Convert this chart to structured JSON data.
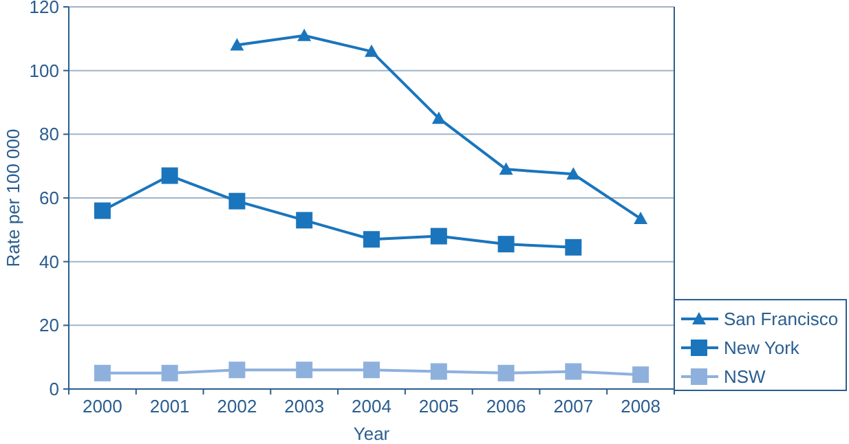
{
  "chart_data": {
    "type": "line",
    "xlabel": "Year",
    "ylabel": "Rate per 100 000",
    "categories": [
      "2000",
      "2001",
      "2002",
      "2003",
      "2004",
      "2005",
      "2006",
      "2007",
      "2008"
    ],
    "series": [
      {
        "name": "San Francisco",
        "color": "#1a75bc",
        "marker": "triangle",
        "values": [
          null,
          null,
          108,
          111,
          106,
          85,
          69,
          67.5,
          53.5
        ]
      },
      {
        "name": "New York",
        "color": "#1a75bc",
        "marker": "square",
        "values": [
          56,
          67,
          59,
          53,
          47,
          48,
          45.5,
          44.5,
          null
        ]
      },
      {
        "name": "NSW",
        "color": "#8eb0dd",
        "marker": "square",
        "values": [
          5,
          5,
          6,
          6,
          6,
          5.5,
          5,
          5.5,
          4.5
        ]
      }
    ],
    "ylim": [
      0,
      120
    ],
    "yticks": [
      0,
      20,
      40,
      60,
      80,
      100,
      120
    ],
    "grid": "y",
    "legend": "right"
  }
}
